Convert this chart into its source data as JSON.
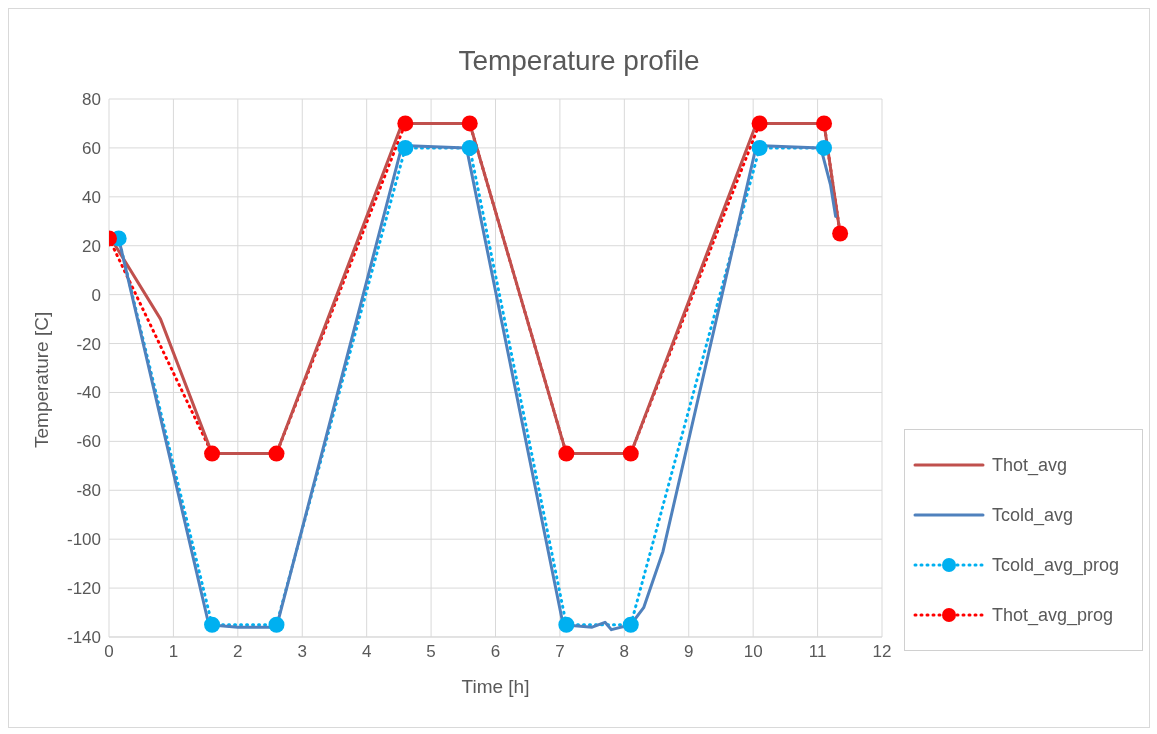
{
  "chart_data": {
    "type": "line",
    "title": "Temperature profile",
    "xlabel": "Time [h]",
    "ylabel": "Temperature [C]",
    "xlim": [
      0,
      12
    ],
    "xticks": [
      0,
      1,
      2,
      3,
      4,
      5,
      6,
      7,
      8,
      9,
      10,
      11,
      12
    ],
    "ylim": [
      -140,
      80
    ],
    "yticks": [
      -140,
      -120,
      -100,
      -80,
      -60,
      -40,
      -20,
      0,
      20,
      40,
      60,
      80
    ],
    "grid": true,
    "legend": "right",
    "series": [
      {
        "name": "Thot_avg",
        "color": "#c0504d",
        "marker": "none",
        "line_style": "solid",
        "x": [
          0,
          0.1,
          0.8,
          1.6,
          2.6,
          4.55,
          5.6,
          7.1,
          8.1,
          10.05,
          11.1,
          11.35
        ],
        "values": [
          23,
          20,
          -10,
          -65,
          -65,
          70,
          70,
          -65,
          -65,
          70,
          70,
          25
        ]
      },
      {
        "name": "Tcold_avg",
        "color": "#4f81bd",
        "marker": "none",
        "line_style": "solid",
        "x": [
          0.15,
          1.55,
          2,
          2.6,
          4.55,
          5.55,
          7.05,
          7.5,
          7.7,
          7.8,
          8.1,
          8.3,
          8.6,
          10.05,
          11.05,
          11.2,
          11.28
        ],
        "values": [
          23,
          -135,
          -136,
          -136,
          61,
          60,
          -135,
          -136,
          -134,
          -137,
          -135,
          -128,
          -105,
          61,
          60,
          45,
          32
        ]
      },
      {
        "name": "Tcold_avg_prog",
        "color": "#00b0f0",
        "marker": "circle",
        "line_style": "dotted",
        "x": [
          0.15,
          1.6,
          2.6,
          4.6,
          5.6,
          7.1,
          8.1,
          10.1,
          11.1
        ],
        "values": [
          23,
          -135,
          -135,
          60,
          60,
          -135,
          -135,
          60,
          60
        ]
      },
      {
        "name": "Thot_avg_prog",
        "color": "#ff0000",
        "marker": "circle",
        "line_style": "dotted",
        "x": [
          0,
          1.6,
          2.6,
          4.6,
          5.6,
          7.1,
          8.1,
          10.1,
          11.1,
          11.35
        ],
        "values": [
          23,
          -65,
          -65,
          70,
          70,
          -65,
          -65,
          70,
          70,
          25
        ]
      }
    ]
  }
}
